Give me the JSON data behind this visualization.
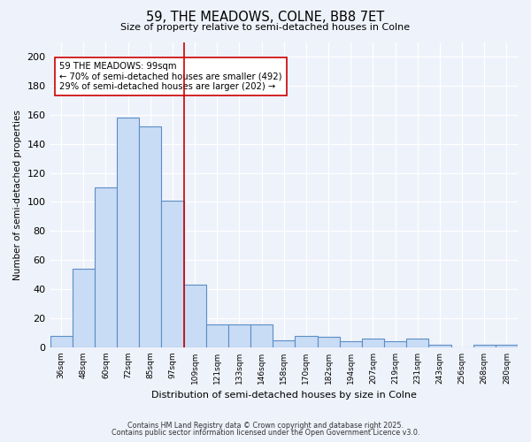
{
  "title": "59, THE MEADOWS, COLNE, BB8 7ET",
  "subtitle": "Size of property relative to semi-detached houses in Colne",
  "xlabel": "Distribution of semi-detached houses by size in Colne",
  "ylabel": "Number of semi-detached properties",
  "bar_labels": [
    "36sqm",
    "48sqm",
    "60sqm",
    "72sqm",
    "85sqm",
    "97sqm",
    "109sqm",
    "121sqm",
    "133sqm",
    "146sqm",
    "158sqm",
    "170sqm",
    "182sqm",
    "194sqm",
    "207sqm",
    "219sqm",
    "231sqm",
    "243sqm",
    "256sqm",
    "268sqm",
    "280sqm"
  ],
  "bar_values": [
    8,
    54,
    110,
    158,
    152,
    101,
    43,
    16,
    16,
    16,
    5,
    8,
    7,
    4,
    6,
    4,
    6,
    2,
    0,
    2,
    2
  ],
  "bar_color": "#c9dcf5",
  "bar_edge_color": "#5b8ec4",
  "vline_color": "#cc0000",
  "annotation_title": "59 THE MEADOWS: 99sqm",
  "annotation_line1": "← 70% of semi-detached houses are smaller (492)",
  "annotation_line2": "29% of semi-detached houses are larger (202) →",
  "annotation_box_color": "#ffffff",
  "annotation_box_edge": "#cc0000",
  "ylim": [
    0,
    210
  ],
  "yticks": [
    0,
    20,
    40,
    60,
    80,
    100,
    120,
    140,
    160,
    180,
    200
  ],
  "footer1": "Contains HM Land Registry data © Crown copyright and database right 2025.",
  "footer2": "Contains public sector information licensed under the Open Government Licence v3.0.",
  "background_color": "#eef2fa",
  "grid_color": "#ffffff"
}
